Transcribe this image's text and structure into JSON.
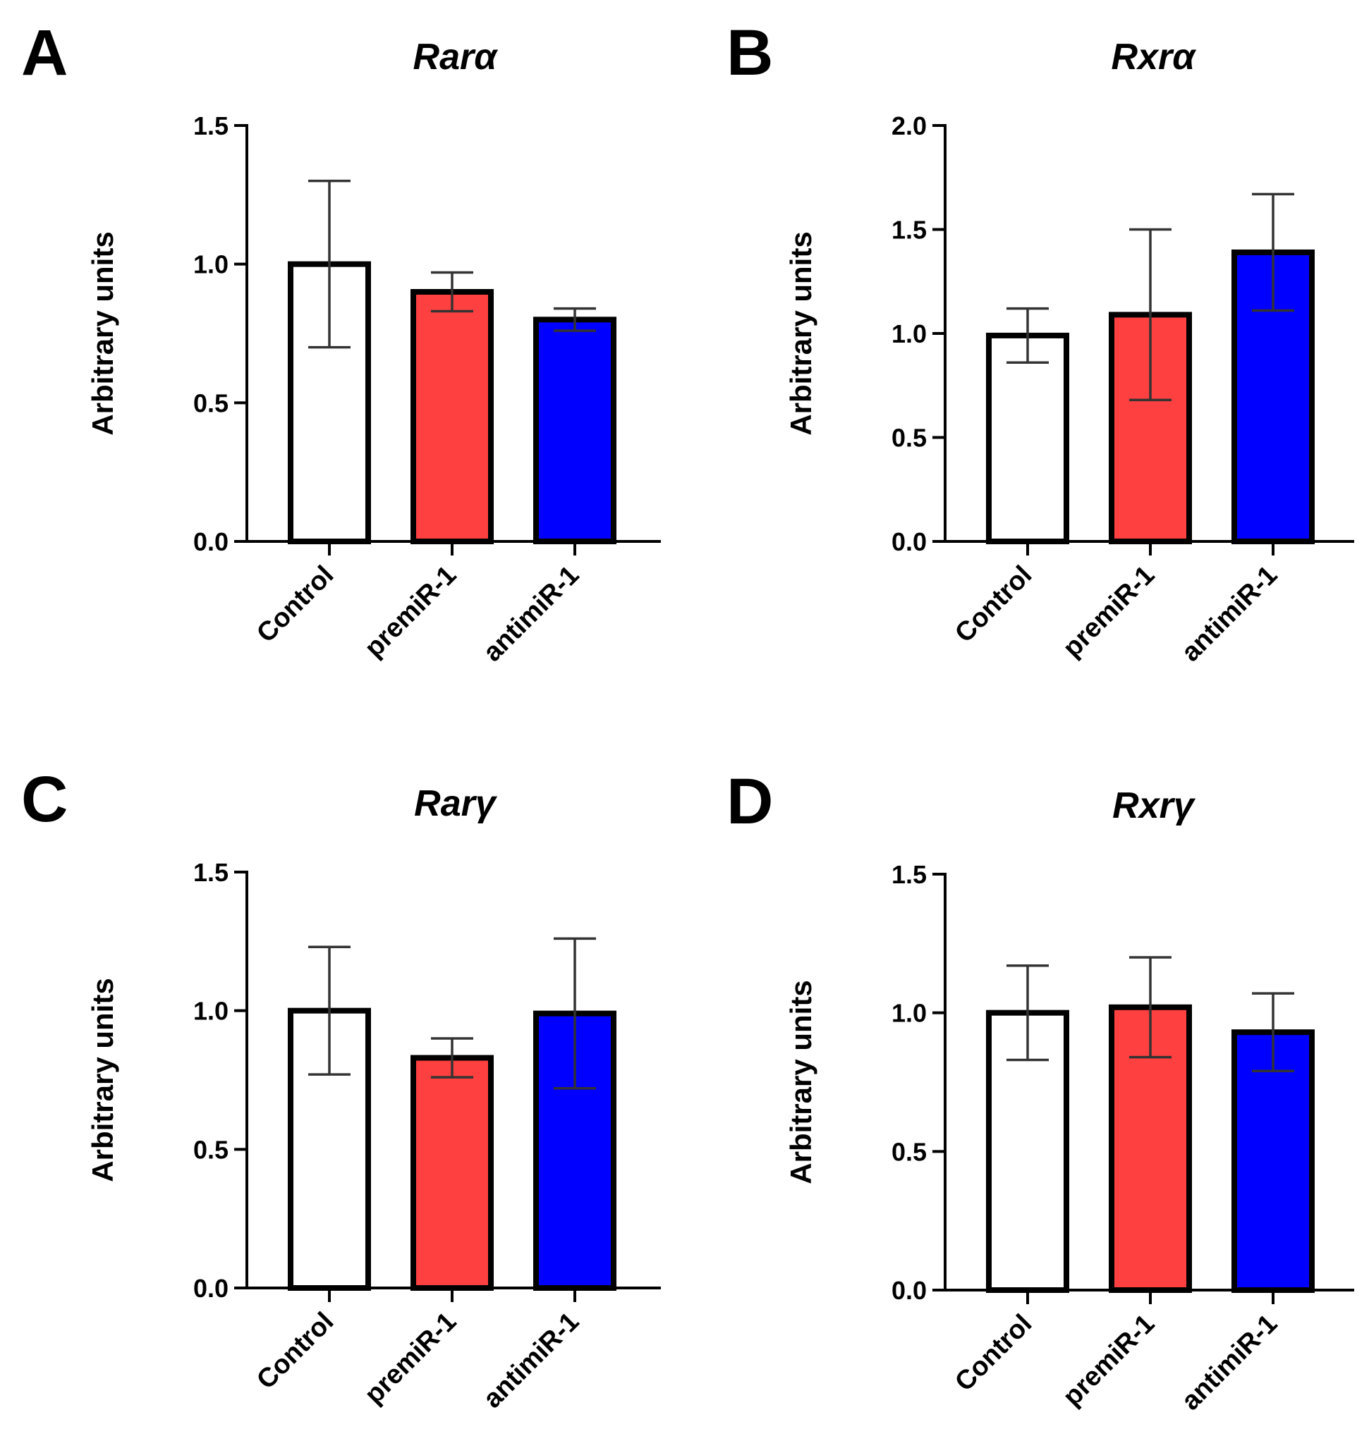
{
  "colors": {
    "Control": "#ffffff",
    "premiR-1": "#ff4040",
    "antimiR-1": "#0000ff"
  },
  "chart_data": [
    {
      "type": "bar",
      "panel": "A",
      "title": "Rarα",
      "ylabel": "Arbitrary units",
      "categories": [
        "Control",
        "premiR-1",
        "antimiR-1"
      ],
      "values": [
        1.0,
        0.9,
        0.8
      ],
      "errors": [
        0.3,
        0.07,
        0.04
      ],
      "ylim": [
        0,
        1.5
      ],
      "yticks": [
        "0.0",
        "0.5",
        "1.0",
        "1.5"
      ]
    },
    {
      "type": "bar",
      "panel": "B",
      "title": "Rxrα",
      "ylabel": "Arbitrary units",
      "categories": [
        "Control",
        "premiR-1",
        "antimiR-1"
      ],
      "values": [
        0.99,
        1.09,
        1.39
      ],
      "errors": [
        0.13,
        0.41,
        0.28
      ],
      "ylim": [
        0,
        2.0
      ],
      "yticks": [
        "0.0",
        "0.5",
        "1.0",
        "1.5",
        "2.0"
      ]
    },
    {
      "type": "bar",
      "panel": "C",
      "title": "Rarγ",
      "ylabel": "Arbitrary units",
      "categories": [
        "Control",
        "premiR-1",
        "antimiR-1"
      ],
      "values": [
        1.0,
        0.83,
        0.99
      ],
      "errors": [
        0.23,
        0.07,
        0.27
      ],
      "ylim": [
        0,
        1.5
      ],
      "yticks": [
        "0.0",
        "0.5",
        "1.0",
        "1.5"
      ]
    },
    {
      "type": "bar",
      "panel": "D",
      "title": "Rxrγ",
      "ylabel": "Arbitrary units",
      "categories": [
        "Control",
        "premiR-1",
        "antimiR-1"
      ],
      "values": [
        1.0,
        1.02,
        0.93
      ],
      "errors": [
        0.17,
        0.18,
        0.14
      ],
      "ylim": [
        0,
        1.5
      ],
      "yticks": [
        "0.0",
        "0.5",
        "1.0",
        "1.5"
      ]
    }
  ]
}
